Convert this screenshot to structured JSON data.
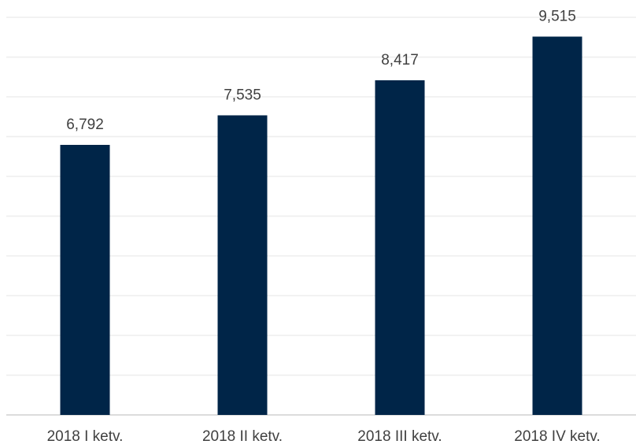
{
  "chart_data": {
    "type": "bar",
    "categories": [
      "2018 I ketv.",
      "2018 II ketv.",
      "2018 III ketv.",
      "2018 IV ketv."
    ],
    "values": [
      6792,
      7535,
      8417,
      9515
    ],
    "value_labels": [
      "6,792",
      "7,535",
      "8,417",
      "9,515"
    ],
    "color": "#002548",
    "ylim": [
      0,
      10000
    ],
    "yticks": [
      0,
      1000,
      2000,
      3000,
      4000,
      5000,
      6000,
      7000,
      8000,
      9000,
      10000
    ],
    "ytick_labels": false,
    "grid": true
  }
}
